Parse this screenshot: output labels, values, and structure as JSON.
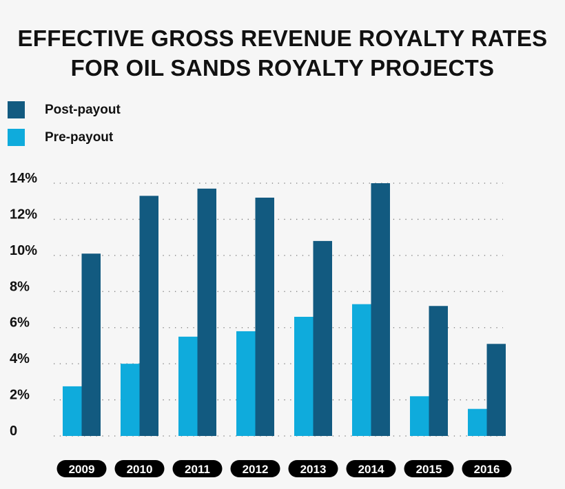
{
  "chart_data": {
    "type": "bar",
    "title_lines": [
      "EFFECTIVE GROSS REVENUE ROYALTY RATES",
      "FOR OIL SANDS ROYALTY PROJECTS"
    ],
    "categories": [
      "2009",
      "2010",
      "2011",
      "2012",
      "2013",
      "2014",
      "2015",
      "2016"
    ],
    "series": [
      {
        "name": "Pre-payout",
        "color": "#0fabdc",
        "values": [
          2.75,
          4.0,
          5.5,
          5.8,
          6.6,
          7.3,
          2.2,
          1.5
        ]
      },
      {
        "name": "Post-payout",
        "color": "#125a80",
        "values": [
          10.1,
          13.3,
          13.7,
          13.2,
          10.8,
          14.0,
          7.2,
          5.1
        ]
      }
    ],
    "legend": [
      {
        "label": "Post-payout",
        "color": "#125a80"
      },
      {
        "label": "Pre-payout",
        "color": "#0fabdc"
      }
    ],
    "legend_placement": "top-left",
    "y_ticks": [
      "0",
      "2%",
      "4%",
      "6%",
      "8%",
      "10%",
      "12%",
      "14%"
    ],
    "ylim": [
      0,
      14
    ],
    "grid": "dotted horizontal",
    "xlabel": "",
    "ylabel": ""
  }
}
